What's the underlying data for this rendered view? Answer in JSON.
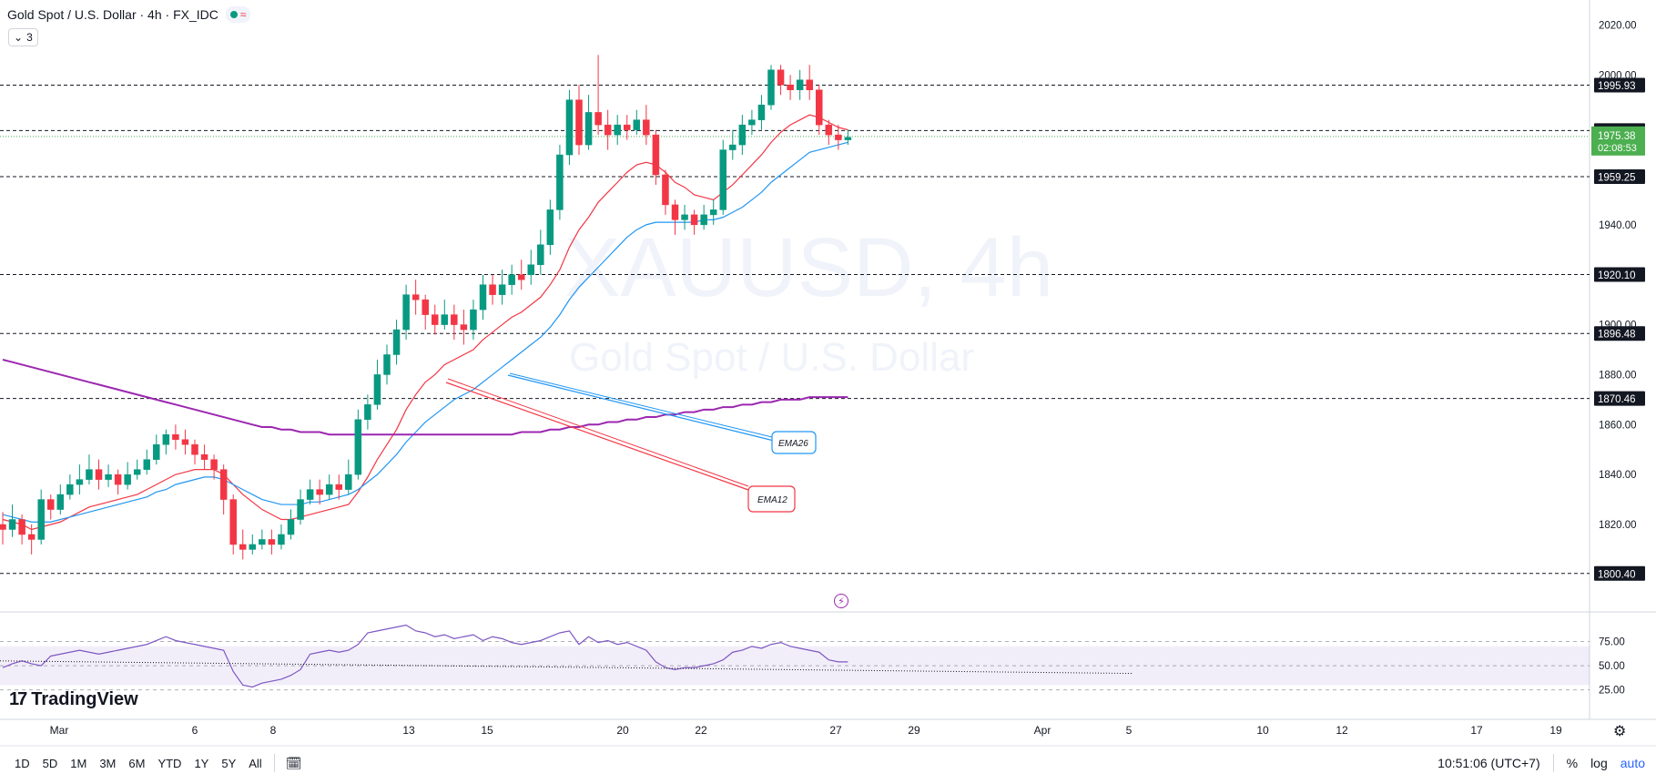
{
  "header": {
    "symbol_title": "Gold Spot / U.S. Dollar · 4h · FX_IDC",
    "indicator_count": "3",
    "status_color": "#089981"
  },
  "watermark": {
    "ticker": "XAUUSD, 4h",
    "name": "Gold Spot / U.S. Dollar"
  },
  "price_axis": {
    "ticks": [
      "2020.00",
      "2000.00",
      "1940.00",
      "1900.00",
      "1880.00",
      "1860.00",
      "1840.00",
      "1820.00"
    ],
    "tick_values": [
      2020,
      2000,
      1940,
      1900,
      1880,
      1860,
      1840,
      1820
    ]
  },
  "levels": [
    {
      "label": "1995.93",
      "value": 1995.93
    },
    {
      "label": "1977.71",
      "value": 1977.71
    },
    {
      "label": "1959.25",
      "value": 1959.25
    },
    {
      "label": "1920.10",
      "value": 1920.1
    },
    {
      "label": "1896.48",
      "value": 1896.48
    },
    {
      "label": "1870.46",
      "value": 1870.46
    },
    {
      "label": "1800.40",
      "value": 1800.4
    }
  ],
  "current_price": {
    "label": "1975.38",
    "countdown": "02:08:53",
    "value": 1975.38,
    "color": "#4caf50"
  },
  "annotations": {
    "ema26": "EMA26",
    "ema12": "EMA12"
  },
  "rsi_axis": {
    "ticks": [
      "75.00",
      "50.00",
      "25.00"
    ],
    "tick_values": [
      75,
      50,
      25
    ]
  },
  "time_axis": {
    "labels": [
      "Mar",
      "6",
      "8",
      "13",
      "15",
      "20",
      "22",
      "27",
      "29",
      "Apr",
      "5",
      "10",
      "12",
      "17",
      "19"
    ]
  },
  "timeframes": [
    "1D",
    "5D",
    "1M",
    "3M",
    "6M",
    "YTD",
    "1Y",
    "5Y",
    "All"
  ],
  "bottom_right": {
    "clock": "10:51:06 (UTC+7)",
    "percent": "%",
    "log": "log",
    "auto": "auto"
  },
  "logo_text": "TradingView",
  "colors": {
    "up": "#089981",
    "down": "#f23645",
    "ema12": "#f23645",
    "ema26": "#2196f3",
    "ma200": "#9c27b0",
    "rsi": "#7e57c2"
  },
  "chart_data": {
    "type": "candlestick",
    "interval": "4h",
    "ylim": [
      1785,
      2030
    ],
    "candles": [
      [
        1820,
        1818,
        1825,
        1812
      ],
      [
        1818,
        1822,
        1828,
        1815
      ],
      [
        1822,
        1816,
        1824,
        1812
      ],
      [
        1816,
        1814,
        1820,
        1808
      ],
      [
        1814,
        1830,
        1834,
        1812
      ],
      [
        1830,
        1826,
        1832,
        1822
      ],
      [
        1826,
        1832,
        1836,
        1824
      ],
      [
        1832,
        1836,
        1840,
        1830
      ],
      [
        1836,
        1838,
        1844,
        1832
      ],
      [
        1838,
        1842,
        1848,
        1836
      ],
      [
        1842,
        1838,
        1846,
        1834
      ],
      [
        1838,
        1840,
        1844,
        1835
      ],
      [
        1840,
        1836,
        1842,
        1832
      ],
      [
        1836,
        1840,
        1845,
        1834
      ],
      [
        1840,
        1842,
        1846,
        1838
      ],
      [
        1842,
        1846,
        1850,
        1840
      ],
      [
        1846,
        1852,
        1856,
        1844
      ],
      [
        1852,
        1856,
        1858,
        1848
      ],
      [
        1856,
        1854,
        1860,
        1850
      ],
      [
        1854,
        1852,
        1858,
        1848
      ],
      [
        1852,
        1848,
        1854,
        1844
      ],
      [
        1848,
        1846,
        1852,
        1842
      ],
      [
        1846,
        1842,
        1848,
        1838
      ],
      [
        1842,
        1830,
        1844,
        1824
      ],
      [
        1830,
        1812,
        1832,
        1808
      ],
      [
        1812,
        1810,
        1818,
        1806
      ],
      [
        1810,
        1812,
        1816,
        1808
      ],
      [
        1812,
        1814,
        1818,
        1810
      ],
      [
        1814,
        1812,
        1818,
        1808
      ],
      [
        1812,
        1816,
        1820,
        1810
      ],
      [
        1816,
        1822,
        1826,
        1814
      ],
      [
        1822,
        1830,
        1834,
        1820
      ],
      [
        1830,
        1834,
        1838,
        1828
      ],
      [
        1834,
        1832,
        1838,
        1828
      ],
      [
        1832,
        1836,
        1840,
        1830
      ],
      [
        1836,
        1834,
        1840,
        1830
      ],
      [
        1834,
        1840,
        1846,
        1832
      ],
      [
        1840,
        1862,
        1866,
        1838
      ],
      [
        1862,
        1868,
        1872,
        1858
      ],
      [
        1868,
        1880,
        1886,
        1866
      ],
      [
        1880,
        1888,
        1892,
        1876
      ],
      [
        1888,
        1898,
        1902,
        1884
      ],
      [
        1898,
        1912,
        1916,
        1894
      ],
      [
        1912,
        1910,
        1918,
        1904
      ],
      [
        1910,
        1904,
        1912,
        1898
      ],
      [
        1904,
        1900,
        1908,
        1896
      ],
      [
        1900,
        1904,
        1910,
        1898
      ],
      [
        1904,
        1900,
        1908,
        1894
      ],
      [
        1900,
        1898,
        1906,
        1892
      ],
      [
        1898,
        1906,
        1910,
        1894
      ],
      [
        1906,
        1916,
        1920,
        1902
      ],
      [
        1916,
        1912,
        1920,
        1908
      ],
      [
        1912,
        1916,
        1922,
        1908
      ],
      [
        1916,
        1920,
        1924,
        1912
      ],
      [
        1920,
        1918,
        1926,
        1914
      ],
      [
        1920,
        1924,
        1930,
        1916
      ],
      [
        1924,
        1932,
        1938,
        1920
      ],
      [
        1932,
        1946,
        1950,
        1928
      ],
      [
        1946,
        1968,
        1972,
        1942
      ],
      [
        1968,
        1990,
        1994,
        1964
      ],
      [
        1990,
        1972,
        1996,
        1968
      ],
      [
        1972,
        1985,
        1992,
        1970
      ],
      [
        1985,
        1980,
        2008,
        1976
      ],
      [
        1980,
        1976,
        1986,
        1970
      ],
      [
        1976,
        1980,
        1984,
        1972
      ],
      [
        1980,
        1978,
        1984,
        1974
      ],
      [
        1978,
        1982,
        1986,
        1976
      ],
      [
        1982,
        1976,
        1988,
        1972
      ],
      [
        1976,
        1960,
        1978,
        1956
      ],
      [
        1960,
        1948,
        1962,
        1944
      ],
      [
        1948,
        1942,
        1950,
        1936
      ],
      [
        1942,
        1944,
        1948,
        1938
      ],
      [
        1944,
        1940,
        1946,
        1936
      ],
      [
        1940,
        1944,
        1948,
        1938
      ],
      [
        1944,
        1946,
        1950,
        1940
      ],
      [
        1946,
        1970,
        1974,
        1944
      ],
      [
        1970,
        1972,
        1978,
        1966
      ],
      [
        1972,
        1980,
        1984,
        1968
      ],
      [
        1980,
        1982,
        1986,
        1976
      ],
      [
        1982,
        1988,
        1992,
        1978
      ],
      [
        1988,
        2002,
        2004,
        1986
      ],
      [
        2002,
        1996,
        2004,
        1992
      ],
      [
        1996,
        1994,
        2000,
        1990
      ],
      [
        1994,
        1998,
        2002,
        1990
      ],
      [
        1998,
        1994,
        2004,
        1990
      ],
      [
        1994,
        1980,
        1996,
        1976
      ],
      [
        1980,
        1976,
        1982,
        1972
      ],
      [
        1976,
        1974,
        1980,
        1970
      ],
      [
        1974,
        1975,
        1978,
        1972
      ]
    ],
    "series": [
      {
        "name": "EMA12",
        "values": [
          1822,
          1821,
          1820,
          1818,
          1819,
          1820,
          1821,
          1823,
          1825,
          1827,
          1828,
          1829,
          1830,
          1831,
          1832,
          1834,
          1836,
          1838,
          1840,
          1841,
          1842,
          1842,
          1842,
          1840,
          1836,
          1832,
          1829,
          1826,
          1824,
          1822,
          1822,
          1823,
          1824,
          1825,
          1826,
          1827,
          1828,
          1833,
          1839,
          1846,
          1852,
          1858,
          1866,
          1872,
          1877,
          1880,
          1884,
          1886,
          1888,
          1890,
          1894,
          1897,
          1900,
          1903,
          1905,
          1908,
          1911,
          1916,
          1922,
          1931,
          1938,
          1943,
          1949,
          1953,
          1957,
          1961,
          1964,
          1965,
          1964,
          1961,
          1957,
          1955,
          1952,
          1951,
          1950,
          1953,
          1956,
          1960,
          1964,
          1968,
          1973,
          1977,
          1980,
          1982,
          1984,
          1983,
          1981,
          1979,
          1978
        ]
      },
      {
        "name": "EMA26",
        "values": [
          1824,
          1823,
          1822,
          1821,
          1821,
          1821,
          1822,
          1823,
          1824,
          1825,
          1826,
          1827,
          1828,
          1829,
          1830,
          1831,
          1833,
          1834,
          1836,
          1837,
          1838,
          1839,
          1839,
          1838,
          1836,
          1834,
          1832,
          1830,
          1829,
          1828,
          1828,
          1828,
          1829,
          1829,
          1830,
          1831,
          1832,
          1834,
          1837,
          1840,
          1844,
          1848,
          1853,
          1857,
          1861,
          1864,
          1867,
          1870,
          1872,
          1874,
          1877,
          1880,
          1883,
          1886,
          1889,
          1892,
          1895,
          1899,
          1904,
          1910,
          1915,
          1919,
          1923,
          1927,
          1931,
          1935,
          1938,
          1940,
          1941,
          1941,
          1941,
          1941,
          1941,
          1942,
          1942,
          1943,
          1945,
          1947,
          1950,
          1953,
          1957,
          1960,
          1963,
          1966,
          1969,
          1970,
          1971,
          1972,
          1973
        ]
      },
      {
        "name": "MA200",
        "values": [
          1886,
          1885,
          1884,
          1883,
          1882,
          1881,
          1880,
          1879,
          1878,
          1877,
          1876,
          1875,
          1874,
          1873,
          1872,
          1871,
          1870,
          1869,
          1868,
          1867,
          1866,
          1865,
          1864,
          1863,
          1862,
          1861,
          1860,
          1859,
          1859,
          1858,
          1858,
          1857,
          1857,
          1857,
          1856,
          1856,
          1856,
          1856,
          1856,
          1856,
          1856,
          1856,
          1856,
          1856,
          1856,
          1856,
          1856,
          1856,
          1856,
          1856,
          1856,
          1856,
          1856,
          1856,
          1857,
          1857,
          1857,
          1858,
          1858,
          1859,
          1859,
          1860,
          1860,
          1861,
          1861,
          1862,
          1862,
          1863,
          1863,
          1864,
          1864,
          1865,
          1865,
          1866,
          1866,
          1867,
          1867,
          1868,
          1868,
          1869,
          1869,
          1870,
          1870,
          1870,
          1871,
          1871,
          1871,
          1871,
          1871
        ]
      },
      {
        "name": "RSI",
        "values": [
          48,
          52,
          55,
          52,
          50,
          60,
          62,
          64,
          66,
          64,
          62,
          64,
          66,
          68,
          70,
          72,
          76,
          80,
          76,
          74,
          72,
          70,
          68,
          66,
          44,
          30,
          28,
          32,
          34,
          36,
          40,
          46,
          62,
          64,
          66,
          64,
          66,
          72,
          84,
          86,
          88,
          90,
          92,
          86,
          84,
          80,
          82,
          78,
          80,
          82,
          76,
          80,
          78,
          74,
          72,
          74,
          76,
          80,
          84,
          86,
          72,
          80,
          74,
          76,
          72,
          74,
          70,
          66,
          54,
          48,
          46,
          48,
          48,
          50,
          52,
          56,
          64,
          66,
          70,
          68,
          72,
          74,
          70,
          68,
          66,
          64,
          56,
          54,
          54
        ]
      }
    ],
    "rsi_band": [
      30,
      70
    ]
  }
}
